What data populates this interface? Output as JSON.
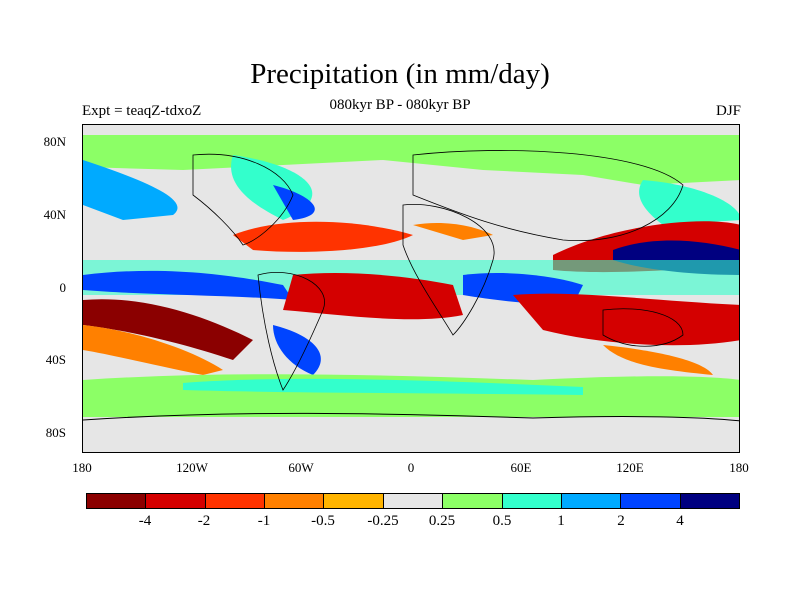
{
  "title": "Precipitation (in mm/day)",
  "left_label": "Expt = teaqZ-tdxoZ",
  "center_label": "080kyr BP - 080kyr BP",
  "right_label": "DJF",
  "lat_ticks": [
    "80N",
    "40N",
    "0",
    "40S",
    "80S"
  ],
  "lon_ticks": [
    "180",
    "120W",
    "60W",
    "0",
    "60E",
    "120E",
    "180"
  ],
  "colorbar": {
    "colors": [
      "#8b0000",
      "#d40000",
      "#ff3300",
      "#ff8000",
      "#ffb400",
      "#e6e6e6",
      "#8cff66",
      "#33ffcc",
      "#00aaff",
      "#0044ff",
      "#000080"
    ],
    "labels": [
      "-4",
      "-2",
      "-1",
      "-0.5",
      "-0.25",
      "0.25",
      "0.5",
      "1",
      "2",
      "4"
    ]
  }
}
